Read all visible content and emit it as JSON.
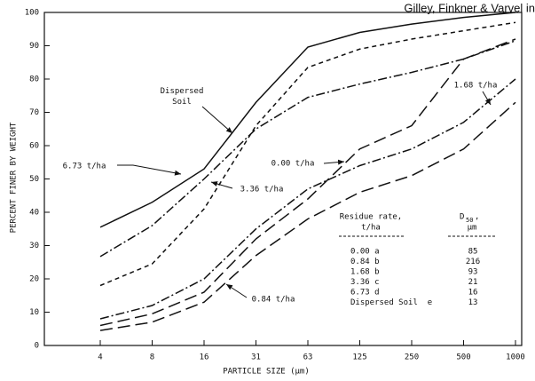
{
  "header": "Gilley, Finkner & Varvel in",
  "chart_data": {
    "type": "line",
    "xlabel": "PARTICLE SIZE (µm)",
    "ylabel": "PERCENT FINER BY WEIGHT",
    "categories": [
      "4",
      "8",
      "16",
      "31",
      "63",
      "125",
      "250",
      "500",
      "1000"
    ],
    "ylim": [
      0,
      100
    ],
    "yticks": [
      0,
      10,
      20,
      30,
      40,
      50,
      60,
      70,
      80,
      90,
      100
    ],
    "series": [
      {
        "name": "Dispersed Soil",
        "color": "#111111",
        "dash": "none",
        "values": [
          35.5,
          43,
          53,
          73,
          89.6,
          94,
          96.5,
          98.5,
          100
        ]
      },
      {
        "name": "6.73 t/ha",
        "color": "#111111",
        "dash": "10 3 2 3",
        "values": [
          26.7,
          36,
          50,
          65,
          74.5,
          78.5,
          82,
          86,
          91.5
        ]
      },
      {
        "name": "3.36 t/ha",
        "color": "#111111",
        "dash": "5 4",
        "values": [
          18,
          24.5,
          41,
          66,
          83.5,
          89,
          92,
          94.5,
          97
        ]
      },
      {
        "name": "0.00 t/ha",
        "color": "#111111",
        "dash": "14 6",
        "values": [
          6,
          9.5,
          16,
          32,
          44,
          59,
          66,
          86,
          92
        ]
      },
      {
        "name": "1.68 t/ha",
        "color": "#111111",
        "dash": "10 3 2 3",
        "values": [
          8,
          12,
          20,
          35,
          47,
          54,
          59,
          67,
          80
        ]
      },
      {
        "name": "0.84 t/ha",
        "color": "#111111",
        "dash": "14 6",
        "values": [
          4.5,
          7,
          13,
          27,
          38,
          46,
          51,
          59,
          73
        ]
      }
    ],
    "table": {
      "header": [
        "Residue rate,",
        "t/ha",
        "D",
        "50",
        ",",
        "µm"
      ],
      "rows": [
        [
          "0.00 a",
          "85"
        ],
        [
          "0.84 b",
          "216"
        ],
        [
          "1.68 b",
          "93"
        ],
        [
          "3.36 c",
          "21"
        ],
        [
          "6.73 d",
          "16"
        ],
        [
          "Dispersed Soil  e",
          "13"
        ]
      ]
    }
  }
}
